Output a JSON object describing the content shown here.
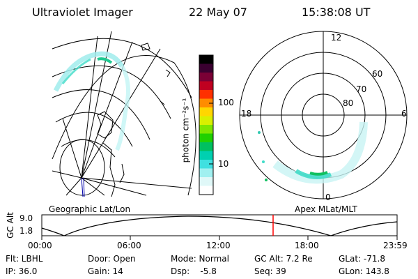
{
  "header": {
    "title": "Ultraviolet Imager",
    "date": "22 May 07",
    "time": "15:38:08 UT"
  },
  "left_panel": {
    "label": "Geographic Lat/Lon"
  },
  "right_panel": {
    "label": "Apex MLat/MLT",
    "lat_labels": [
      "60",
      "70",
      "80"
    ],
    "mlt_labels": [
      "12",
      "18",
      "6",
      "0"
    ]
  },
  "colorbar": {
    "label": "photon cm⁻²s⁻¹",
    "ticks": [
      "100",
      "10"
    ],
    "colors": [
      "#000000",
      "#3a0030",
      "#7a0035",
      "#c00020",
      "#ff3000",
      "#ff8c00",
      "#ffd600",
      "#d8f000",
      "#7ee600",
      "#20d000",
      "#00c060",
      "#00d0b0",
      "#40e0e0",
      "#a0f0f0",
      "#e0f8f8",
      "#ffffff"
    ]
  },
  "timeline": {
    "y_label": "GC Alt",
    "y_ticks": [
      "9.0",
      "1.8"
    ],
    "x_ticks": [
      "00:00",
      "06:00",
      "12:00",
      "18:00",
      "23:59"
    ],
    "marker_color": "#ff0000"
  },
  "info": {
    "flt": "Flt: LBHL",
    "ip": "IP: 36.0",
    "door": "Door: Open",
    "gain": "Gain: 14",
    "mode": "Mode: Normal",
    "dsp": "Dsp:    -5.8",
    "gc_alt": "GC Alt: 7.2 Re",
    "seq": "Seq: 39",
    "glat": "GLat: -71.8",
    "glon": "GLon: 143.8"
  }
}
